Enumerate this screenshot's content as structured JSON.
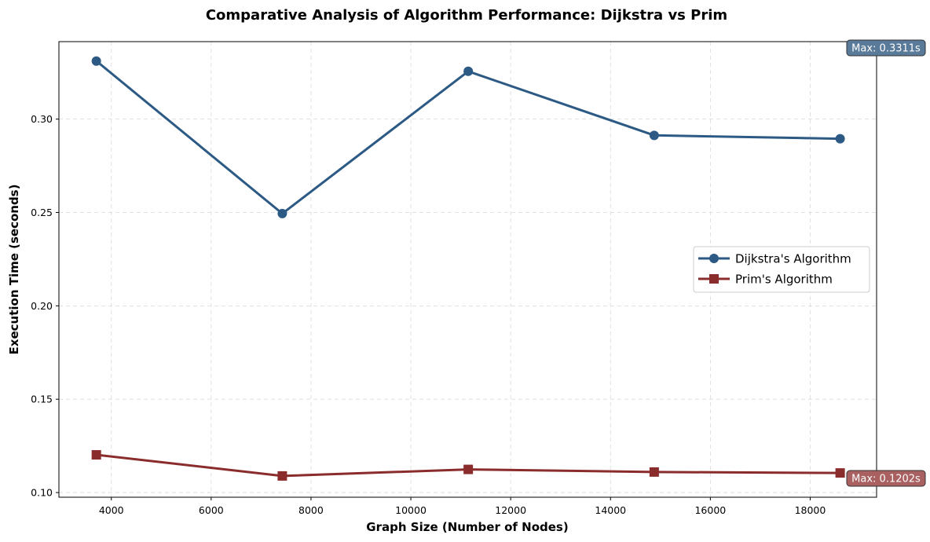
{
  "chart_data": {
    "type": "line",
    "title": "Comparative Analysis of Algorithm Performance: Dijkstra vs Prim",
    "xlabel": "Graph Size (Number of Nodes)",
    "ylabel": "Execution Time (seconds)",
    "xlim": [
      2950,
      19330
    ],
    "ylim": [
      0.0975,
      0.3415
    ],
    "x_ticks": [
      4000,
      6000,
      8000,
      10000,
      12000,
      14000,
      16000,
      18000
    ],
    "y_ticks": [
      0.1,
      0.15,
      0.2,
      0.25,
      0.3
    ],
    "y_tick_labels": [
      "0.10",
      "0.15",
      "0.20",
      "0.25",
      "0.30"
    ],
    "grid": true,
    "legend_position": "center-right",
    "x": [
      3700,
      7425,
      11150,
      14875,
      18600
    ],
    "series": [
      {
        "name": "Dijkstra's Algorithm",
        "values": [
          0.3311,
          0.2494,
          0.3256,
          0.2913,
          0.2895
        ],
        "color": "#2c5a84",
        "marker": "circle"
      },
      {
        "name": "Prim's Algorithm",
        "values": [
          0.1202,
          0.1089,
          0.1124,
          0.111,
          0.1105
        ],
        "color": "#8b2c2c",
        "marker": "square"
      }
    ],
    "annotations": [
      {
        "text": "Max: 0.3311s",
        "series": 0,
        "bg": "#5a7a9a"
      },
      {
        "text": "Max: 0.1202s",
        "series": 1,
        "bg": "#a86060"
      }
    ]
  }
}
